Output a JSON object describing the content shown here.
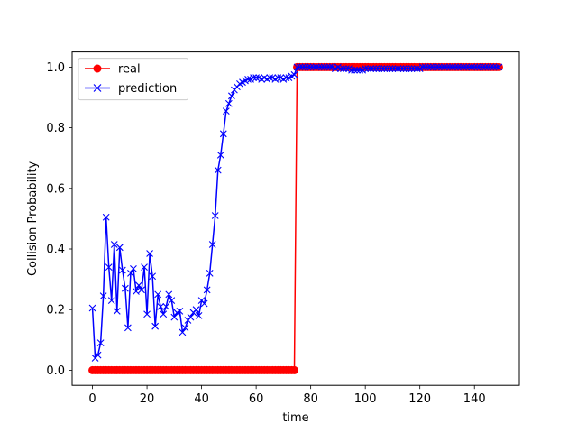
{
  "chart_data": {
    "type": "line",
    "title": "",
    "xlabel": "time",
    "ylabel": "Collision Probability",
    "xlim": [
      -7.45,
      156.45
    ],
    "ylim": [
      -0.05,
      1.05
    ],
    "xticks": [
      0,
      20,
      40,
      60,
      80,
      100,
      120,
      140
    ],
    "yticks": [
      0.0,
      0.2,
      0.4,
      0.6,
      0.8,
      1.0
    ],
    "xtick_labels": [
      "0",
      "20",
      "40",
      "60",
      "80",
      "100",
      "120",
      "140"
    ],
    "ytick_labels": [
      "0.0",
      "0.2",
      "0.4",
      "0.6",
      "0.8",
      "1.0"
    ],
    "grid": false,
    "legend_position": "top-left",
    "series": [
      {
        "name": "real",
        "color": "#ff0000",
        "marker": "circle",
        "x_start": 0,
        "x_step": 1,
        "values": [
          0,
          0,
          0,
          0,
          0,
          0,
          0,
          0,
          0,
          0,
          0,
          0,
          0,
          0,
          0,
          0,
          0,
          0,
          0,
          0,
          0,
          0,
          0,
          0,
          0,
          0,
          0,
          0,
          0,
          0,
          0,
          0,
          0,
          0,
          0,
          0,
          0,
          0,
          0,
          0,
          0,
          0,
          0,
          0,
          0,
          0,
          0,
          0,
          0,
          0,
          0,
          0,
          0,
          0,
          0,
          0,
          0,
          0,
          0,
          0,
          0,
          0,
          0,
          0,
          0,
          0,
          0,
          0,
          0,
          0,
          0,
          0,
          0,
          0,
          0,
          1,
          1,
          1,
          1,
          1,
          1,
          1,
          1,
          1,
          1,
          1,
          1,
          1,
          1,
          1,
          1,
          1,
          1,
          1,
          1,
          1,
          1,
          1,
          1,
          1,
          1,
          1,
          1,
          1,
          1,
          1,
          1,
          1,
          1,
          1,
          1,
          1,
          1,
          1,
          1,
          1,
          1,
          1,
          1,
          1,
          1,
          1,
          1,
          1,
          1,
          1,
          1,
          1,
          1,
          1,
          1,
          1,
          1,
          1,
          1,
          1,
          1,
          1,
          1,
          1,
          1,
          1,
          1,
          1,
          1,
          1,
          1,
          1,
          1,
          1
        ]
      },
      {
        "name": "prediction",
        "color": "#0000ff",
        "marker": "x",
        "x_start": 0,
        "x_step": 1,
        "values": [
          0.205,
          0.04,
          0.05,
          0.09,
          0.245,
          0.505,
          0.34,
          0.23,
          0.415,
          0.195,
          0.405,
          0.33,
          0.27,
          0.14,
          0.32,
          0.335,
          0.26,
          0.28,
          0.265,
          0.34,
          0.185,
          0.385,
          0.31,
          0.145,
          0.25,
          0.21,
          0.185,
          0.21,
          0.25,
          0.23,
          0.175,
          0.19,
          0.195,
          0.125,
          0.14,
          0.165,
          0.175,
          0.19,
          0.2,
          0.18,
          0.23,
          0.22,
          0.265,
          0.32,
          0.415,
          0.51,
          0.66,
          0.71,
          0.78,
          0.855,
          0.88,
          0.905,
          0.925,
          0.935,
          0.945,
          0.95,
          0.955,
          0.96,
          0.96,
          0.965,
          0.965,
          0.965,
          0.96,
          0.965,
          0.96,
          0.965,
          0.965,
          0.96,
          0.965,
          0.965,
          0.96,
          0.965,
          0.965,
          0.97,
          0.975,
          1.0,
          1.0,
          1.0,
          1.0,
          1.0,
          1.0,
          1.0,
          1.0,
          1.0,
          1.0,
          1.0,
          1.0,
          1.0,
          1.0,
          0.995,
          1.0,
          0.995,
          0.995,
          0.995,
          0.995,
          0.99,
          0.99,
          0.99,
          0.99,
          0.99,
          0.995,
          0.995,
          0.995,
          0.995,
          0.995,
          0.995,
          0.995,
          0.995,
          0.995,
          0.995,
          0.995,
          0.995,
          0.995,
          0.995,
          0.995,
          0.995,
          0.995,
          0.995,
          0.995,
          0.995,
          0.995,
          1.0,
          1.0,
          1.0,
          1.0,
          1.0,
          1.0,
          1.0,
          1.0,
          1.0,
          1.0,
          1.0,
          1.0,
          1.0,
          1.0,
          1.0,
          1.0,
          1.0,
          1.0,
          1.0,
          1.0,
          1.0,
          1.0,
          1.0,
          1.0,
          1.0,
          1.0,
          1.0,
          1.0,
          1.0
        ]
      }
    ]
  }
}
